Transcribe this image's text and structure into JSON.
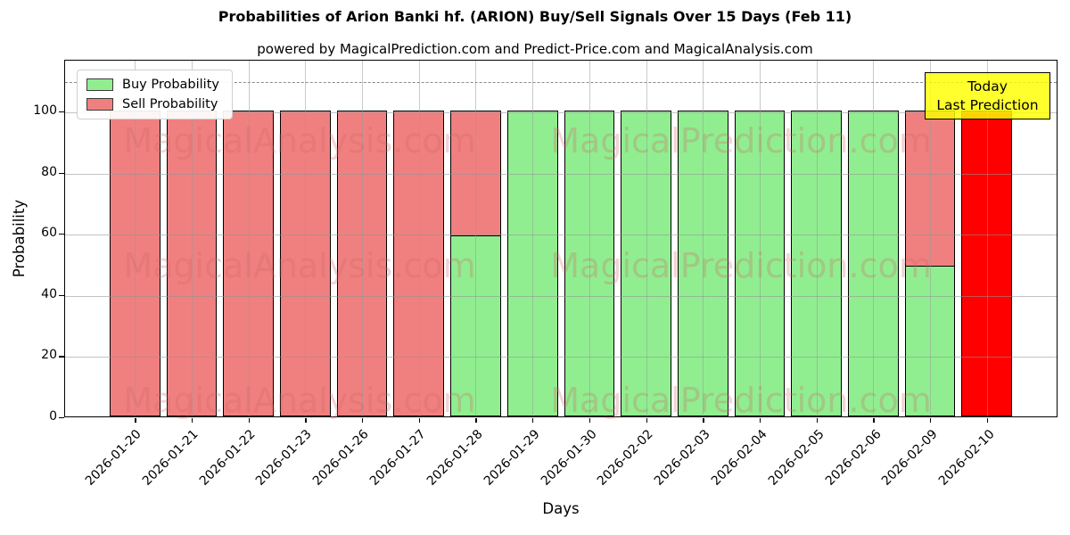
{
  "title": "Probabilities of Arion Banki hf. (ARION) Buy/Sell Signals Over 15 Days (Feb 11)",
  "subtitle": "powered by MagicalPrediction.com and Predict-Price.com and MagicalAnalysis.com",
  "chart_data": {
    "type": "bar",
    "stacked": true,
    "title": "Probabilities of Arion Banki hf. (ARION) Buy/Sell Signals Over 15 Days (Feb 11)",
    "xlabel": "Days",
    "ylabel": "Probability",
    "categories": [
      "2026-01-20",
      "2026-01-21",
      "2026-01-22",
      "2026-01-23",
      "2026-01-26",
      "2026-01-27",
      "2026-01-28",
      "2026-01-29",
      "2026-01-30",
      "2026-02-02",
      "2026-02-03",
      "2026-02-04",
      "2026-02-05",
      "2026-02-06",
      "2026-02-09",
      "2026-02-10"
    ],
    "series": [
      {
        "name": "Buy Probability",
        "color": "#90EE90",
        "values": [
          0,
          0,
          0,
          0,
          0,
          0,
          59,
          100,
          100,
          100,
          100,
          100,
          100,
          100,
          49,
          0
        ]
      },
      {
        "name": "Sell Probability",
        "color": "#F08080",
        "values": [
          100,
          100,
          100,
          100,
          100,
          100,
          41,
          0,
          0,
          0,
          0,
          0,
          0,
          0,
          51,
          100
        ]
      }
    ],
    "today_index": 15,
    "today_color": "#FF0000",
    "yticks": [
      0,
      20,
      40,
      60,
      80,
      100
    ],
    "ylim": [
      0,
      117
    ],
    "dashed_line_y": 110,
    "grid": true,
    "legend_position": "upper left"
  },
  "legend": {
    "items": [
      {
        "label": "Buy Probability",
        "color": "#90EE90"
      },
      {
        "label": "Sell Probability",
        "color": "#F08080"
      }
    ]
  },
  "annotation": {
    "line1": "Today",
    "line2": "Last Prediction",
    "bg": "#FFFF00"
  },
  "watermarks": {
    "left": "MagicalAnalysis.com",
    "right": "MagicalPrediction.com"
  },
  "colors": {
    "grid": "#b0b0b0",
    "axis": "#000000",
    "watermark": "#d26464"
  }
}
